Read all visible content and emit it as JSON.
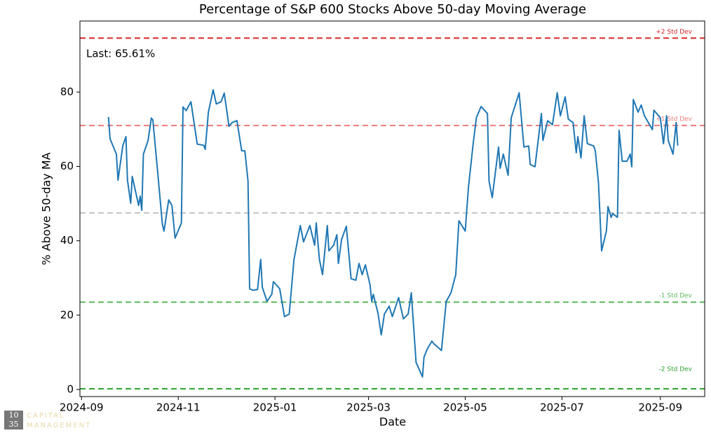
{
  "chart_data": {
    "type": "line",
    "title": "Percentage of S&P 600 Stocks Above 50-day Moving Average",
    "x_label": "Date",
    "y_label": "% Above 50-day MA",
    "annotation": "Last: 65.61%",
    "color": "#1f77b4",
    "x": [
      "2024-09-18",
      "2024-09-19",
      "2024-09-23",
      "2024-09-24",
      "2024-09-27",
      "2024-09-29",
      "2024-09-30",
      "2024-10-02",
      "2024-10-03",
      "2024-10-07",
      "2024-10-08",
      "2024-10-09",
      "2024-10-10",
      "2024-10-13",
      "2024-10-15",
      "2024-10-16",
      "2024-10-19",
      "2024-10-22",
      "2024-10-23",
      "2024-10-26",
      "2024-10-28",
      "2024-10-30",
      "2024-11-03",
      "2024-11-04",
      "2024-11-06",
      "2024-11-09",
      "2024-11-13",
      "2024-11-17",
      "2024-11-18",
      "2024-11-20",
      "2024-11-23",
      "2024-11-25",
      "2024-11-28",
      "2024-11-30",
      "2024-12-03",
      "2024-12-05",
      "2024-12-08",
      "2024-12-11",
      "2024-12-13",
      "2024-12-15",
      "2024-12-16",
      "2024-12-18",
      "2024-12-21",
      "2024-12-23",
      "2024-12-24",
      "2024-12-27",
      "2024-12-30",
      "2024-12-31",
      "2025-01-04",
      "2025-01-07",
      "2025-01-10",
      "2025-01-13",
      "2025-01-17",
      "2025-01-19",
      "2025-01-23",
      "2025-01-26",
      "2025-01-27",
      "2025-01-29",
      "2025-01-31",
      "2025-02-03",
      "2025-02-04",
      "2025-02-07",
      "2025-02-09",
      "2025-02-10",
      "2025-02-12",
      "2025-02-15",
      "2025-02-18",
      "2025-02-21",
      "2025-02-23",
      "2025-02-25",
      "2025-02-27",
      "2025-03-02",
      "2025-03-03",
      "2025-03-04",
      "2025-03-07",
      "2025-03-09",
      "2025-03-11",
      "2025-03-14",
      "2025-03-16",
      "2025-03-20",
      "2025-03-23",
      "2025-03-26",
      "2025-03-28",
      "2025-03-31",
      "2025-04-04",
      "2025-04-05",
      "2025-04-07",
      "2025-04-10",
      "2025-04-11",
      "2025-04-16",
      "2025-04-19",
      "2025-04-22",
      "2025-04-25",
      "2025-04-27",
      "2025-05-01",
      "2025-05-03",
      "2025-05-06",
      "2025-05-08",
      "2025-05-11",
      "2025-05-15",
      "2025-05-16",
      "2025-05-18",
      "2025-05-22",
      "2025-05-23",
      "2025-05-25",
      "2025-05-28",
      "2025-05-30",
      "2025-06-04",
      "2025-06-07",
      "2025-06-10",
      "2025-06-11",
      "2025-06-14",
      "2025-06-18",
      "2025-06-19",
      "2025-06-22",
      "2025-06-25",
      "2025-06-28",
      "2025-06-30",
      "2025-07-03",
      "2025-07-05",
      "2025-07-08",
      "2025-07-10",
      "2025-07-11",
      "2025-07-13",
      "2025-07-15",
      "2025-07-17",
      "2025-07-21",
      "2025-07-22",
      "2025-07-24",
      "2025-07-26",
      "2025-07-29",
      "2025-07-30",
      "2025-08-01",
      "2025-08-02",
      "2025-08-05",
      "2025-08-06",
      "2025-08-08",
      "2025-08-11",
      "2025-08-13",
      "2025-08-14",
      "2025-08-15",
      "2025-08-18",
      "2025-08-20",
      "2025-08-22",
      "2025-08-27",
      "2025-08-28",
      "2025-09-01",
      "2025-09-03",
      "2025-09-05",
      "2025-09-06",
      "2025-09-09",
      "2025-09-11",
      "2025-09-12"
    ],
    "values": [
      73.3,
      67.4,
      63.3,
      56.3,
      65.5,
      68.0,
      56.3,
      50.1,
      57.3,
      49.5,
      52,
      48.2,
      63.3,
      67,
      73,
      72.5,
      58.6,
      44.4,
      42.6,
      51,
      49.5,
      40.7,
      44.8,
      76,
      75,
      77.4,
      66,
      65.7,
      64.6,
      74.6,
      80.6,
      76.8,
      77.4,
      79.7,
      70.8,
      71.8,
      72.3,
      64.2,
      64.2,
      56.1,
      27.1,
      26.7,
      26.9,
      35,
      27.5,
      23.7,
      25.6,
      29,
      27.1,
      19.6,
      20.3,
      35,
      44.1,
      39.7,
      44.1,
      38.8,
      44.8,
      35,
      30.9,
      44.1,
      37.3,
      38.8,
      41.6,
      33.9,
      40.3,
      43.9,
      29.8,
      29.4,
      33.9,
      30.9,
      33.5,
      28.1,
      23.7,
      25.6,
      20.5,
      14.7,
      20.3,
      22.4,
      19.6,
      24.7,
      19,
      20.3,
      26,
      7.3,
      3.4,
      8.7,
      10.9,
      13,
      12.4,
      10.5,
      23.7,
      26,
      30.9,
      45.4,
      42.6,
      54.2,
      66.1,
      73.1,
      76.1,
      74.2,
      56.1,
      51.6,
      65.2,
      59.5,
      63.3,
      57.6,
      73.1,
      79.8,
      65.2,
      65.5,
      60.5,
      59.9,
      74.2,
      67,
      72.3,
      71.2,
      79.8,
      73.6,
      78.7,
      72.7,
      71.8,
      63.7,
      68,
      62.3,
      73.6,
      66.1,
      65.5,
      64.2,
      55.7,
      37.3,
      42.6,
      49.2,
      46.3,
      47.3,
      46.3,
      69.7,
      61.4,
      61.4,
      63.3,
      59.9,
      78,
      74.6,
      76.5,
      73.6,
      69.9,
      75.1,
      73.1,
      66.1,
      73.6,
      67,
      63.3,
      71.8,
      65.61
    ],
    "xlim": [
      "2024-08-31",
      "2025-09-29"
    ],
    "xticks": [
      {
        "value": "2024-09-01",
        "label": "2024-09"
      },
      {
        "value": "2024-11-01",
        "label": "2024-11"
      },
      {
        "value": "2025-01-01",
        "label": "2025-01"
      },
      {
        "value": "2025-03-01",
        "label": "2025-03"
      },
      {
        "value": "2025-05-01",
        "label": "2025-05"
      },
      {
        "value": "2025-07-01",
        "label": "2025-07"
      },
      {
        "value": "2025-09-01",
        "label": "2025-09"
      }
    ],
    "ylim": [
      -1.9,
      99.1
    ],
    "yticks": [
      0,
      20,
      40,
      60,
      80
    ],
    "reference_lines": [
      {
        "label": "+2 Std Dev",
        "value": 94.5,
        "color": "#d62728"
      },
      {
        "label": "+1 Std Dev",
        "value": 71.0,
        "color": "#ee7a7a"
      },
      {
        "value": 47.5,
        "color": "#c4c4c4"
      },
      {
        "label": "-1 Std Dev",
        "value": 23.5,
        "color": "#5cb85c"
      },
      {
        "label": "-2 Std Dev",
        "value": 0.2,
        "color": "#2ca02c"
      }
    ]
  },
  "watermark": {
    "mark": [
      "10",
      "35"
    ],
    "text": [
      "CAPITAL",
      "MANAGEMENT"
    ]
  }
}
